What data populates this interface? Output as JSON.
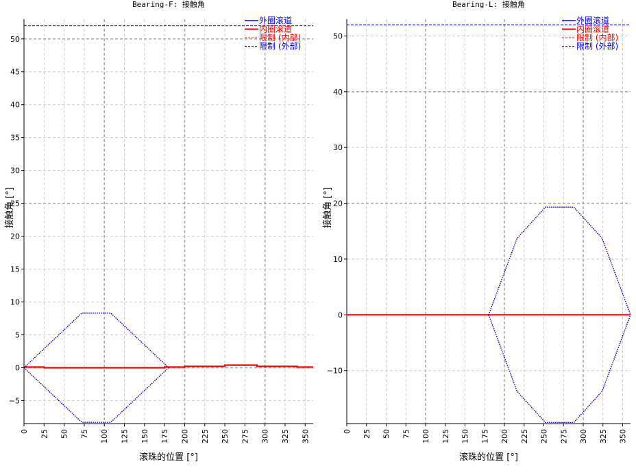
{
  "chart_data": [
    {
      "type": "line",
      "title": "Bearing-F: 接触角",
      "xlabel": "滚珠的位置 [°]",
      "ylabel": "接触角 [°]",
      "xlim": [
        0,
        360
      ],
      "ylim": [
        -8.5,
        53
      ],
      "xticks": [
        0,
        25,
        50,
        75,
        100,
        125,
        150,
        175,
        200,
        225,
        250,
        275,
        300,
        325,
        350
      ],
      "yticks": [
        -5,
        0,
        5,
        10,
        15,
        20,
        25,
        30,
        35,
        40,
        45,
        50
      ],
      "yticks_major": [
        0,
        25,
        50
      ],
      "grid": true,
      "legend_position": "top-right",
      "legend": [
        "外圈滚道",
        "内圈滚道",
        "限制 (内部)",
        "限制 (外部)"
      ],
      "colors": {
        "outer": "#0000ff",
        "inner": "#ff0000"
      },
      "series": [
        {
          "name": "外圈滚道",
          "style": "solid",
          "color": "#0000ff",
          "x": [
            0,
            25,
            25,
            50,
            50,
            75,
            75,
            100,
            100,
            125,
            125,
            150,
            150,
            175,
            175,
            200,
            200,
            250,
            250,
            290,
            290,
            340,
            340,
            360
          ],
          "y": [
            0.1,
            0.1,
            0.0,
            0.0,
            0.0,
            0.0,
            0.0,
            0.0,
            0.0,
            0.0,
            0.0,
            0.0,
            0.0,
            0.0,
            0.1,
            0.1,
            0.2,
            0.2,
            0.4,
            0.4,
            0.2,
            0.2,
            0.1,
            0.1
          ]
        },
        {
          "name": "内圈滚道",
          "style": "solid",
          "color": "#ff0000",
          "x": [
            0,
            25,
            25,
            50,
            50,
            75,
            75,
            100,
            100,
            125,
            125,
            150,
            150,
            175,
            175,
            200,
            200,
            250,
            250,
            290,
            290,
            340,
            340,
            360
          ],
          "y": [
            0.1,
            0.1,
            0.0,
            0.0,
            0.0,
            0.0,
            0.0,
            0.0,
            0.0,
            0.0,
            0.0,
            0.0,
            0.0,
            0.0,
            0.1,
            0.1,
            0.2,
            0.2,
            0.4,
            0.4,
            0.2,
            0.2,
            0.1,
            0.1
          ]
        },
        {
          "name": "限制 (内部)",
          "style": "dotted",
          "color": "#ff0000",
          "x": [
            0,
            72,
            108,
            180
          ],
          "y": [
            0,
            8.3,
            8.3,
            0
          ]
        },
        {
          "name": "限制 (内部)",
          "style": "dotted",
          "color": "#ff0000",
          "x": [
            0,
            72,
            108,
            180
          ],
          "y": [
            0,
            -8.3,
            -8.3,
            0
          ]
        },
        {
          "name": "限制 (外部)",
          "style": "dotted",
          "color": "#0000ff",
          "x": [
            0,
            72,
            108,
            180
          ],
          "y": [
            0,
            8.3,
            8.3,
            0
          ]
        },
        {
          "name": "限制 (外部)",
          "style": "dotted",
          "color": "#0000ff",
          "x": [
            0,
            72,
            108,
            180
          ],
          "y": [
            0,
            -8.3,
            -8.3,
            0
          ]
        },
        {
          "name": "限制 (外部)",
          "style": "dashed",
          "color": "#0000ff",
          "x": [
            0,
            360
          ],
          "y": [
            52,
            52
          ]
        }
      ]
    },
    {
      "type": "line",
      "title": "Bearing-L: 接触角",
      "xlabel": "滚珠的位置 [°]",
      "ylabel": "接触角 [°]",
      "xlim": [
        0,
        360
      ],
      "ylim": [
        -19.5,
        53
      ],
      "xticks": [
        0,
        25,
        50,
        75,
        100,
        125,
        150,
        175,
        200,
        225,
        250,
        275,
        300,
        325,
        350
      ],
      "yticks": [
        -10,
        0,
        10,
        20,
        30,
        40,
        50
      ],
      "yticks_major": [
        20,
        40
      ],
      "grid": true,
      "legend_position": "top-right",
      "legend": [
        "外圈滚道",
        "内圈滚道",
        "限制 (内部)",
        "限制 (外部)"
      ],
      "colors": {
        "outer": "#0000ff",
        "inner": "#ff0000"
      },
      "series": [
        {
          "name": "外圈滚道",
          "style": "solid",
          "color": "#0000ff",
          "x": [
            0,
            360
          ],
          "y": [
            0,
            0
          ]
        },
        {
          "name": "内圈滚道",
          "style": "solid",
          "color": "#ff0000",
          "x": [
            0,
            360
          ],
          "y": [
            0,
            0
          ]
        },
        {
          "name": "限制 (内部)",
          "style": "dotted",
          "color": "#ff0000",
          "x": [
            180,
            216,
            252,
            288,
            324,
            360
          ],
          "y": [
            0,
            13.7,
            19.3,
            19.3,
            13.7,
            0
          ]
        },
        {
          "name": "限制 (内部)",
          "style": "dotted",
          "color": "#ff0000",
          "x": [
            180,
            216,
            252,
            288,
            324,
            360
          ],
          "y": [
            0,
            -13.7,
            -19.3,
            -19.3,
            -13.7,
            0
          ]
        },
        {
          "name": "限制 (外部)",
          "style": "dotted",
          "color": "#0000ff",
          "x": [
            180,
            216,
            252,
            288,
            324,
            360
          ],
          "y": [
            0,
            13.7,
            19.3,
            19.3,
            13.7,
            0
          ]
        },
        {
          "name": "限制 (外部)",
          "style": "dotted",
          "color": "#0000ff",
          "x": [
            180,
            216,
            252,
            288,
            324,
            360
          ],
          "y": [
            0,
            -13.7,
            -19.3,
            -19.3,
            -13.7,
            0
          ]
        },
        {
          "name": "限制 (外部)",
          "style": "dashed",
          "color": "#0000ff",
          "x": [
            0,
            360
          ],
          "y": [
            52,
            52
          ]
        }
      ]
    }
  ]
}
